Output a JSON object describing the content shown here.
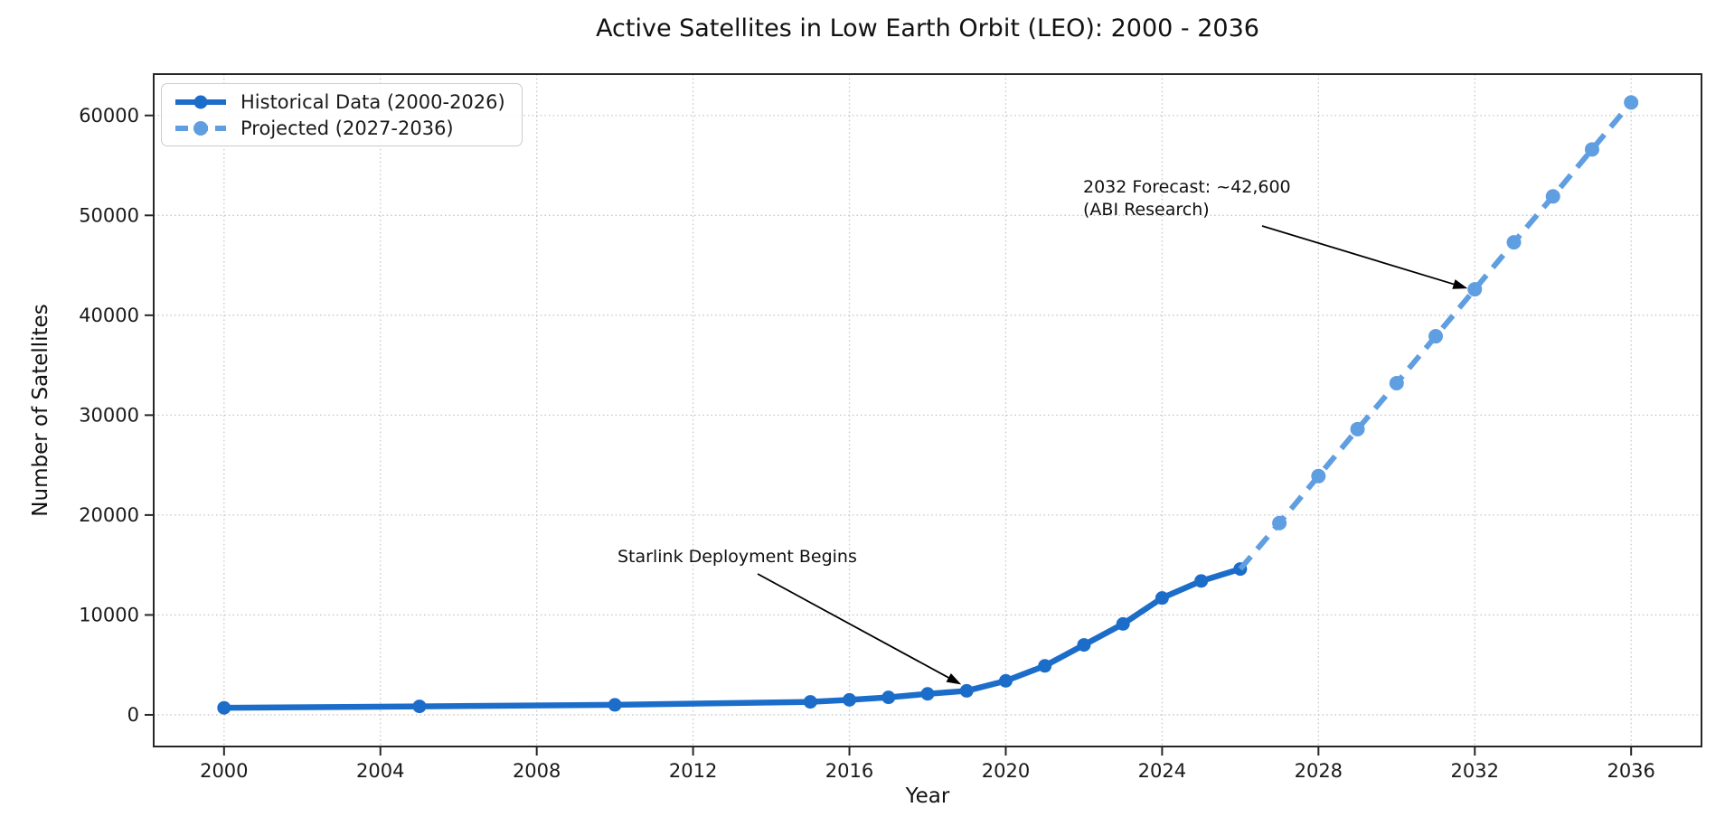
{
  "colors": {
    "historical": "#1b6dc9",
    "projected": "#5f9ee0",
    "grid": "#c9c9c9",
    "axis": "#262626",
    "text": "#1a1a1a",
    "annotation_arrow": "#000000",
    "background": "#ffffff"
  },
  "chart_data": {
    "type": "line",
    "title": "Active Satellites in Low Earth Orbit (LEO): 2000 - 2036",
    "xlabel": "Year",
    "ylabel": "Number of Satellites",
    "x_ticks": [
      2000,
      2004,
      2008,
      2012,
      2016,
      2020,
      2024,
      2028,
      2032,
      2036
    ],
    "y_ticks": [
      0,
      10000,
      20000,
      30000,
      40000,
      50000,
      60000
    ],
    "x_domain": [
      1998.2,
      2037.8
    ],
    "y_domain": [
      -3170,
      64140
    ],
    "grid": "dotted",
    "legend_position": "upper-left",
    "series": [
      {
        "name": "Historical Data (2000-2026)",
        "color": "#1b6dc9",
        "style": "solid",
        "line_width": 6.5,
        "marker_radius": 7.5,
        "x": [
          2000,
          2005,
          2010,
          2015,
          2016,
          2017,
          2018,
          2019,
          2020,
          2021,
          2022,
          2023,
          2024,
          2025,
          2026
        ],
        "y": [
          700,
          850,
          1000,
          1300,
          1500,
          1750,
          2100,
          2400,
          3400,
          4900,
          7000,
          9100,
          11700,
          13400,
          14600
        ]
      },
      {
        "name": "Projected (2027-2036)",
        "color": "#5f9ee0",
        "style": "dashed",
        "line_width": 6,
        "marker_radius": 8,
        "markers_from_index": 1,
        "x": [
          2026,
          2027,
          2028,
          2029,
          2030,
          2031,
          2032,
          2033,
          2034,
          2035,
          2036
        ],
        "y": [
          14600,
          19200,
          23900,
          28600,
          33200,
          37900,
          42600,
          47300,
          51900,
          56600,
          61300
        ]
      }
    ],
    "annotations": [
      {
        "lines": [
          "Starlink Deployment Begins"
        ],
        "target_year": 2019,
        "target_value": 2400
      },
      {
        "lines": [
          "2032 Forecast: ~42,600",
          "(ABI Research)"
        ],
        "target_year": 2032,
        "target_value": 42600
      }
    ]
  }
}
